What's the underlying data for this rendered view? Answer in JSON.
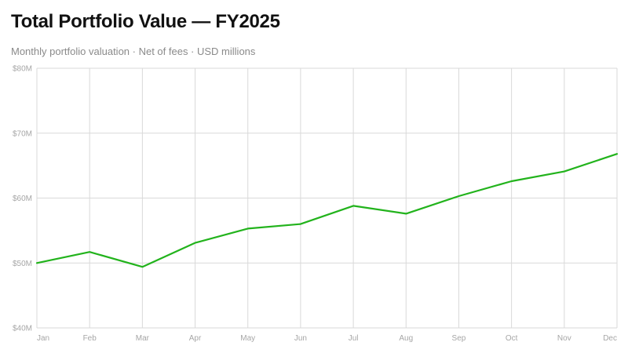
{
  "header": {
    "title": "Total Portfolio Value — FY2025",
    "subtitle": "Monthly portfolio valuation · Net of fees · USD millions"
  },
  "colors": {
    "line": "#22b31c",
    "grid": "#d9d9d9",
    "axis_text": "#a6a6a6",
    "title": "#111111",
    "subtitle": "#8a8a8a"
  },
  "chart_data": {
    "type": "line",
    "title": "Total Portfolio Value — FY2025",
    "subtitle": "Monthly portfolio valuation · Net of fees · USD millions",
    "xlabel": "",
    "ylabel": "",
    "categories": [
      "Jan",
      "Feb",
      "Mar",
      "Apr",
      "May",
      "Jun",
      "Jul",
      "Aug",
      "Sep",
      "Oct",
      "Nov",
      "Dec"
    ],
    "series": [
      {
        "values": [
          50.0,
          51.7,
          49.4,
          53.1,
          55.3,
          56.0,
          58.8,
          57.6,
          60.3,
          62.6,
          64.1,
          66.8
        ]
      }
    ],
    "ylim": [
      40,
      80
    ],
    "yticks": [
      40,
      50,
      60,
      70,
      80
    ],
    "ytick_labels": [
      "$40M",
      "$50M",
      "$60M",
      "$70M",
      "$80M"
    ],
    "grid": true,
    "legend": "none"
  }
}
